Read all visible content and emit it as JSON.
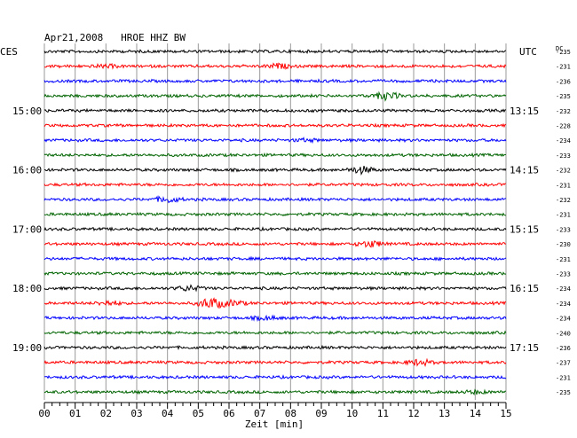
{
  "chart_data": {
    "type": "line",
    "title": "Apr21,2008   HROE HHZ BW",
    "left_zone_label": "CES",
    "right_zone_label": "UTC",
    "dc_label": "DC",
    "xlabel": "Zeit [min]",
    "xlim": [
      0,
      15
    ],
    "x_ticks": [
      "00",
      "01",
      "02",
      "03",
      "04",
      "05",
      "06",
      "07",
      "08",
      "09",
      "10",
      "11",
      "12",
      "13",
      "14",
      "15"
    ],
    "left_time_labels": [
      {
        "row": 4,
        "text": "15:00"
      },
      {
        "row": 8,
        "text": "16:00"
      },
      {
        "row": 12,
        "text": "17:00"
      },
      {
        "row": 16,
        "text": "18:00"
      },
      {
        "row": 20,
        "text": "19:00"
      }
    ],
    "right_time_labels": [
      {
        "row": 4,
        "text": "13:15"
      },
      {
        "row": 8,
        "text": "14:15"
      },
      {
        "row": 12,
        "text": "15:15"
      },
      {
        "row": 16,
        "text": "16:15"
      },
      {
        "row": 20,
        "text": "17:15"
      }
    ],
    "trace_colors": [
      "#000000",
      "#ff0000",
      "#0000ff",
      "#006400"
    ],
    "dc_offsets": [
      -235,
      -231,
      -236,
      -235,
      -232,
      -228,
      -234,
      -233,
      -232,
      -231,
      -232,
      -231,
      -233,
      -230,
      -231,
      -233,
      -234,
      -234,
      -234,
      -240,
      -236,
      -237,
      -231,
      -235
    ],
    "events": [
      {
        "row": 1,
        "minute": 2.0,
        "amp": 0.6
      },
      {
        "row": 1,
        "minute": 7.6,
        "amp": 1.0
      },
      {
        "row": 3,
        "minute": 11.1,
        "amp": 1.8
      },
      {
        "row": 6,
        "minute": 8.5,
        "amp": 0.6
      },
      {
        "row": 8,
        "minute": 10.3,
        "amp": 1.6
      },
      {
        "row": 10,
        "minute": 4.0,
        "amp": 1.3
      },
      {
        "row": 13,
        "minute": 10.6,
        "amp": 1.5
      },
      {
        "row": 16,
        "minute": 4.7,
        "amp": 1.2
      },
      {
        "row": 17,
        "minute": 2.1,
        "amp": 1.0
      },
      {
        "row": 17,
        "minute": 5.4,
        "amp": 2.6
      },
      {
        "row": 17,
        "minute": 6.1,
        "amp": 1.2
      },
      {
        "row": 18,
        "minute": 7.2,
        "amp": 0.8
      },
      {
        "row": 21,
        "minute": 12.2,
        "amp": 1.4
      },
      {
        "row": 23,
        "minute": 14.0,
        "amp": 0.7
      }
    ]
  }
}
